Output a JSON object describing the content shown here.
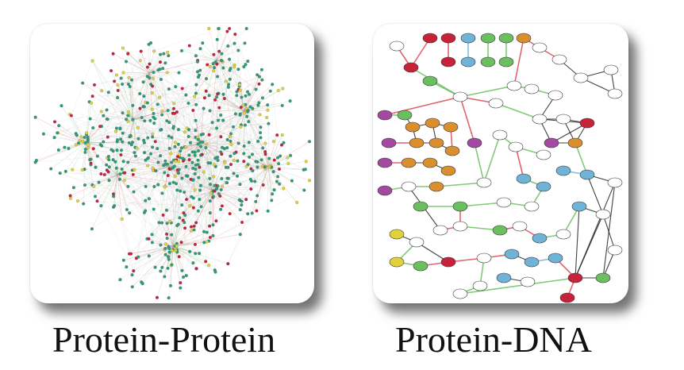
{
  "captions": {
    "left": "Protein-Protein",
    "right": "Protein-DNA"
  },
  "colors": {
    "node_green": "#2e9c7a",
    "node_red": "#c8223a",
    "node_yellow": "#e0d23a",
    "node_orange": "#d98f2e",
    "node_purple": "#a34aa0",
    "node_blue": "#6fb3d6",
    "node_white": "#ffffff",
    "edge_red": "#d94a55",
    "edge_green": "#6cbf60",
    "edge_black": "#222222",
    "edge_grey": "#b8b8b8"
  }
}
